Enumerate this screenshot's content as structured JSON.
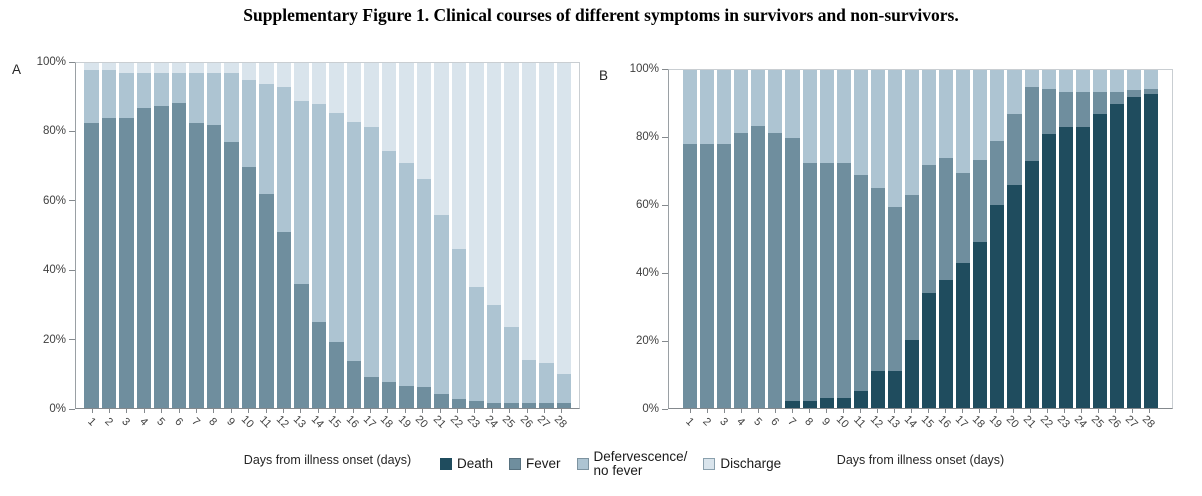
{
  "title": "Supplementary Figure 1. Clinical courses of different symptoms in survivors and non-survivors.",
  "legend": {
    "items": [
      {
        "label": "Death",
        "color": "#1f4c5e",
        "border": "#1f4c5e"
      },
      {
        "label": "Fever",
        "color": "#6f8e9e",
        "border": "#57717f"
      },
      {
        "label": "Defervescence/\nno fever",
        "color": "#adc4d2",
        "border": "#7d93a0"
      },
      {
        "label": "Discharge",
        "color": "#d9e4ec",
        "border": "#8aa0ad"
      }
    ]
  },
  "chart_data": [
    {
      "type": "bar",
      "stacked": true,
      "percent_total": 100,
      "panel": "A",
      "xlabel": "Days from illness onset (days)",
      "ylim": [
        0,
        100
      ],
      "yticks": [
        "0%",
        "20%",
        "40%",
        "60%",
        "80%",
        "100%"
      ],
      "grid": false,
      "categories": [
        1,
        2,
        3,
        4,
        5,
        6,
        7,
        8,
        9,
        10,
        11,
        12,
        13,
        14,
        15,
        16,
        17,
        18,
        19,
        20,
        21,
        22,
        23,
        24,
        25,
        26,
        27,
        28
      ],
      "series": [
        {
          "name": "Fever",
          "color": "#6f8e9e",
          "values": [
            82.5,
            84,
            84,
            87,
            87.5,
            88.5,
            82.5,
            82,
            77,
            70,
            62,
            51,
            36,
            25,
            19,
            13.5,
            9,
            7.5,
            6.5,
            6,
            4,
            2.5,
            2,
            1.5,
            1.5,
            1.5,
            1.5,
            1.5
          ]
        },
        {
          "name": "Defervescence/no fever",
          "color": "#adc4d2",
          "values": [
            15.5,
            14,
            13,
            10,
            9.5,
            8.5,
            14.5,
            15,
            20,
            25,
            32,
            42,
            53,
            63,
            66.5,
            69.5,
            72.5,
            67,
            64.5,
            60.5,
            52,
            43.5,
            33,
            28.5,
            22,
            12.5,
            11.5,
            8.5
          ]
        },
        {
          "name": "Discharge",
          "color": "#d9e4ec",
          "values": [
            2,
            2,
            3,
            3,
            3,
            3,
            3,
            3,
            3,
            5,
            6,
            7,
            11,
            12,
            14.5,
            17,
            18.5,
            25.5,
            29,
            33.5,
            44,
            54,
            65,
            70,
            76.5,
            86,
            87,
            90
          ]
        }
      ]
    },
    {
      "type": "bar",
      "stacked": true,
      "percent_total": 100,
      "panel": "B",
      "xlabel": "Days from illness onset (days)",
      "ylim": [
        0,
        100
      ],
      "yticks": [
        "0%",
        "20%",
        "40%",
        "60%",
        "80%",
        "100%"
      ],
      "grid": false,
      "categories": [
        1,
        2,
        3,
        4,
        5,
        6,
        7,
        8,
        9,
        10,
        11,
        12,
        13,
        14,
        15,
        16,
        17,
        18,
        19,
        20,
        21,
        22,
        23,
        24,
        25,
        26,
        27,
        28
      ],
      "series": [
        {
          "name": "Death",
          "color": "#1f4c5e",
          "values": [
            0,
            0,
            0,
            0,
            0,
            0,
            2,
            2,
            3,
            3,
            5,
            11,
            11,
            20,
            34,
            38,
            43,
            49,
            60,
            66,
            73,
            81,
            83,
            83,
            87,
            90,
            92,
            93
          ]
        },
        {
          "name": "Fever",
          "color": "#6f8e9e",
          "values": [
            78,
            78,
            78,
            81.5,
            83.5,
            81.5,
            78,
            70.5,
            69.5,
            69.5,
            64,
            54,
            48.5,
            43,
            38,
            36,
            26.5,
            24.5,
            19,
            21,
            22,
            13.5,
            10.5,
            10.5,
            6.5,
            3.5,
            2,
            1.5
          ]
        },
        {
          "name": "Defervescence/no fever",
          "color": "#adc4d2",
          "values": [
            22,
            22,
            22,
            18.5,
            16.5,
            18.5,
            20,
            27.5,
            27.5,
            27.5,
            31,
            35,
            40.5,
            37,
            28,
            26,
            30.5,
            26.5,
            21,
            13,
            5,
            5.5,
            6.5,
            6.5,
            6.5,
            6.5,
            6,
            5.5
          ]
        }
      ]
    }
  ]
}
